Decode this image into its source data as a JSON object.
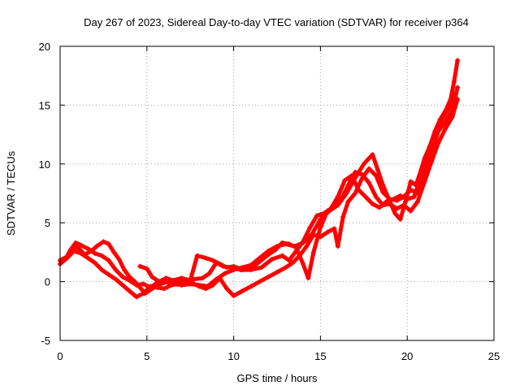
{
  "chart_data": {
    "type": "scatter",
    "title": "Day 267 of 2023, Sidereal Day-to-day VTEC variation (SDTVAR) for receiver p364",
    "xlabel": "GPS time / hours",
    "ylabel": "SDTVAR / TECUs",
    "xlim": [
      0,
      25
    ],
    "ylim": [
      -5,
      20
    ],
    "xticks": [
      0,
      5,
      10,
      15,
      20,
      25
    ],
    "yticks": [
      -5,
      0,
      5,
      10,
      15,
      20
    ],
    "grid": true,
    "marker": "plus",
    "color": "#ff0000",
    "series": [
      {
        "name": "trace-1",
        "points": [
          [
            0,
            1.8
          ],
          [
            0.3,
            1.9
          ],
          [
            0.6,
            2.7
          ],
          [
            0.9,
            3.3
          ],
          [
            1.2,
            3.1
          ],
          [
            1.6,
            2.8
          ],
          [
            2.0,
            2.4
          ],
          [
            2.4,
            2.2
          ],
          [
            2.8,
            1.8
          ],
          [
            3.2,
            1.0
          ],
          [
            3.6,
            0.4
          ],
          [
            4.0,
            0.1
          ],
          [
            4.4,
            -0.3
          ],
          [
            4.8,
            -0.2
          ],
          [
            5.2,
            -0.5
          ],
          [
            5.6,
            -0.1
          ],
          [
            6.0,
            0.0
          ],
          [
            6.5,
            -0.2
          ],
          [
            7.0,
            -0.3
          ],
          [
            7.5,
            -0.2
          ],
          [
            8.0,
            -0.3
          ],
          [
            8.5,
            -0.4
          ],
          [
            9.0,
            0.2
          ],
          [
            9.5,
            0.7
          ],
          [
            10.0,
            1.0
          ],
          [
            10.5,
            1.2
          ],
          [
            11.0,
            1.4
          ],
          [
            11.5,
            2.0
          ],
          [
            12.0,
            2.6
          ],
          [
            12.5,
            3.0
          ],
          [
            13.0,
            3.2
          ],
          [
            13.5,
            3.0
          ],
          [
            14.0,
            3.3
          ],
          [
            14.5,
            4.0
          ],
          [
            15.0,
            5.3
          ],
          [
            15.5,
            6.0
          ],
          [
            16.0,
            6.5
          ],
          [
            16.5,
            7.5
          ],
          [
            17.0,
            8.8
          ],
          [
            17.5,
            10.0
          ],
          [
            18.0,
            10.8
          ],
          [
            18.3,
            9.5
          ],
          [
            18.6,
            8.2
          ],
          [
            19.0,
            6.8
          ],
          [
            19.3,
            5.8
          ],
          [
            19.6,
            5.3
          ],
          [
            19.9,
            6.8
          ],
          [
            20.2,
            8.5
          ],
          [
            20.5,
            8.2
          ],
          [
            20.8,
            9.5
          ],
          [
            21.0,
            10.5
          ],
          [
            21.3,
            11.5
          ],
          [
            21.6,
            12.8
          ],
          [
            21.9,
            13.8
          ],
          [
            22.2,
            14.5
          ],
          [
            22.5,
            15.5
          ],
          [
            22.7,
            17.0
          ],
          [
            22.9,
            18.8
          ]
        ]
      },
      {
        "name": "trace-2",
        "points": [
          [
            0,
            1.8
          ],
          [
            0.5,
            2.2
          ],
          [
            0.8,
            3.0
          ],
          [
            1.1,
            2.8
          ],
          [
            1.4,
            2.3
          ],
          [
            1.8,
            2.6
          ],
          [
            2.1,
            3.0
          ],
          [
            2.5,
            3.4
          ],
          [
            2.8,
            3.2
          ],
          [
            3.1,
            2.5
          ],
          [
            3.4,
            1.9
          ],
          [
            3.7,
            1.0
          ],
          [
            4.0,
            0.4
          ],
          [
            4.3,
            0.0
          ],
          [
            4.6,
            -0.5
          ],
          [
            4.9,
            -1.0
          ],
          [
            5.3,
            -0.6
          ],
          [
            5.8,
            -0.2
          ],
          [
            6.2,
            0.0
          ],
          [
            6.7,
            0.1
          ],
          [
            7.2,
            -0.1
          ],
          [
            7.7,
            0.2
          ],
          [
            8.2,
            0.3
          ],
          [
            8.6,
            0.7
          ],
          [
            9.0,
            1.6
          ],
          [
            9.4,
            1.3
          ],
          [
            9.8,
            1.2
          ],
          [
            10.4,
            1.0
          ],
          [
            11.0,
            1.0
          ],
          [
            11.6,
            1.2
          ],
          [
            12.2,
            1.9
          ],
          [
            12.8,
            2.2
          ],
          [
            13.2,
            1.8
          ],
          [
            13.6,
            2.6
          ],
          [
            14.0,
            3.4
          ],
          [
            14.4,
            4.6
          ],
          [
            14.8,
            5.6
          ],
          [
            15.2,
            5.8
          ],
          [
            15.6,
            6.2
          ],
          [
            16.0,
            7.2
          ],
          [
            16.4,
            8.6
          ],
          [
            16.8,
            9.0
          ],
          [
            17.2,
            7.8
          ],
          [
            17.6,
            7.2
          ],
          [
            18.0,
            6.6
          ],
          [
            18.4,
            6.3
          ],
          [
            18.8,
            6.8
          ],
          [
            19.2,
            7.0
          ],
          [
            19.6,
            7.3
          ],
          [
            20.0,
            7.0
          ],
          [
            20.4,
            7.2
          ],
          [
            20.8,
            9.0
          ],
          [
            21.2,
            10.8
          ],
          [
            21.6,
            12.5
          ],
          [
            22.0,
            13.8
          ],
          [
            22.4,
            14.8
          ],
          [
            22.8,
            16.0
          ]
        ]
      },
      {
        "name": "trace-3",
        "points": [
          [
            0,
            1.5
          ],
          [
            0.4,
            2.0
          ],
          [
            0.8,
            2.6
          ],
          [
            1.2,
            2.4
          ],
          [
            1.6,
            2.0
          ],
          [
            2.0,
            1.6
          ],
          [
            2.4,
            1.0
          ],
          [
            2.8,
            0.6
          ],
          [
            3.2,
            0.2
          ],
          [
            3.6,
            -0.3
          ],
          [
            4.0,
            -0.8
          ],
          [
            4.4,
            -1.3
          ],
          [
            4.8,
            -1.0
          ],
          [
            5.2,
            -0.4
          ],
          [
            5.6,
            -0.5
          ],
          [
            6.0,
            -0.6
          ],
          [
            6.4,
            -0.3
          ],
          [
            6.8,
            -0.2
          ],
          [
            7.2,
            0.1
          ],
          [
            7.6,
            -0.1
          ],
          [
            8.0,
            -0.4
          ],
          [
            8.4,
            -0.6
          ],
          [
            8.8,
            -0.3
          ],
          [
            9.2,
            0.3
          ],
          [
            9.6,
            -0.6
          ],
          [
            10.0,
            -1.2
          ],
          [
            10.5,
            -0.8
          ],
          [
            11.0,
            -0.4
          ],
          [
            11.5,
            0.0
          ],
          [
            12.0,
            0.4
          ],
          [
            12.5,
            0.8
          ],
          [
            13.0,
            1.2
          ],
          [
            13.4,
            1.6
          ],
          [
            13.8,
            2.2
          ],
          [
            14.2,
            3.0
          ],
          [
            14.6,
            4.0
          ],
          [
            15.0,
            3.8
          ],
          [
            15.4,
            4.2
          ],
          [
            15.8,
            4.5
          ],
          [
            16.0,
            3.0
          ],
          [
            16.3,
            5.5
          ],
          [
            16.6,
            6.8
          ],
          [
            17.0,
            7.5
          ],
          [
            17.4,
            8.8
          ],
          [
            17.8,
            9.6
          ],
          [
            18.2,
            9.0
          ],
          [
            18.6,
            7.6
          ],
          [
            19.0,
            7.0
          ],
          [
            19.4,
            6.9
          ],
          [
            19.8,
            7.2
          ],
          [
            20.2,
            7.8
          ],
          [
            20.6,
            7.5
          ],
          [
            21.0,
            9.5
          ],
          [
            21.4,
            11.0
          ],
          [
            21.8,
            12.8
          ],
          [
            22.2,
            13.6
          ],
          [
            22.6,
            14.6
          ],
          [
            22.9,
            16.5
          ]
        ]
      },
      {
        "name": "trace-4",
        "points": [
          [
            4.6,
            1.3
          ],
          [
            5.0,
            1.1
          ],
          [
            5.3,
            0.4
          ],
          [
            5.7,
            0.0
          ],
          [
            6.1,
            0.3
          ],
          [
            6.5,
            0.1
          ],
          [
            7.0,
            0.3
          ],
          [
            7.5,
            0.1
          ],
          [
            7.9,
            2.2
          ],
          [
            8.4,
            2.0
          ],
          [
            8.8,
            1.8
          ],
          [
            9.2,
            1.5
          ],
          [
            9.6,
            1.2
          ],
          [
            10.0,
            1.3
          ],
          [
            10.5,
            1.0
          ],
          [
            11.0,
            1.1
          ],
          [
            11.5,
            1.7
          ],
          [
            12.0,
            2.3
          ],
          [
            12.4,
            2.7
          ],
          [
            12.8,
            3.3
          ],
          [
            13.2,
            3.2
          ],
          [
            13.6,
            2.9
          ],
          [
            14.0,
            1.5
          ],
          [
            14.3,
            0.3
          ],
          [
            14.6,
            2.5
          ],
          [
            15.0,
            4.6
          ],
          [
            15.4,
            6.0
          ],
          [
            15.8,
            6.4
          ],
          [
            16.2,
            7.0
          ],
          [
            16.6,
            8.2
          ],
          [
            17.0,
            9.3
          ],
          [
            17.4,
            9.1
          ],
          [
            17.8,
            8.4
          ],
          [
            18.2,
            7.2
          ],
          [
            18.6,
            6.5
          ],
          [
            19.0,
            6.6
          ],
          [
            19.4,
            6.2
          ],
          [
            19.8,
            6.5
          ],
          [
            20.2,
            6.0
          ],
          [
            20.6,
            6.8
          ],
          [
            21.0,
            8.5
          ],
          [
            21.4,
            10.2
          ],
          [
            21.8,
            11.8
          ],
          [
            22.2,
            13.0
          ],
          [
            22.6,
            14.0
          ],
          [
            22.9,
            15.5
          ]
        ]
      }
    ]
  }
}
